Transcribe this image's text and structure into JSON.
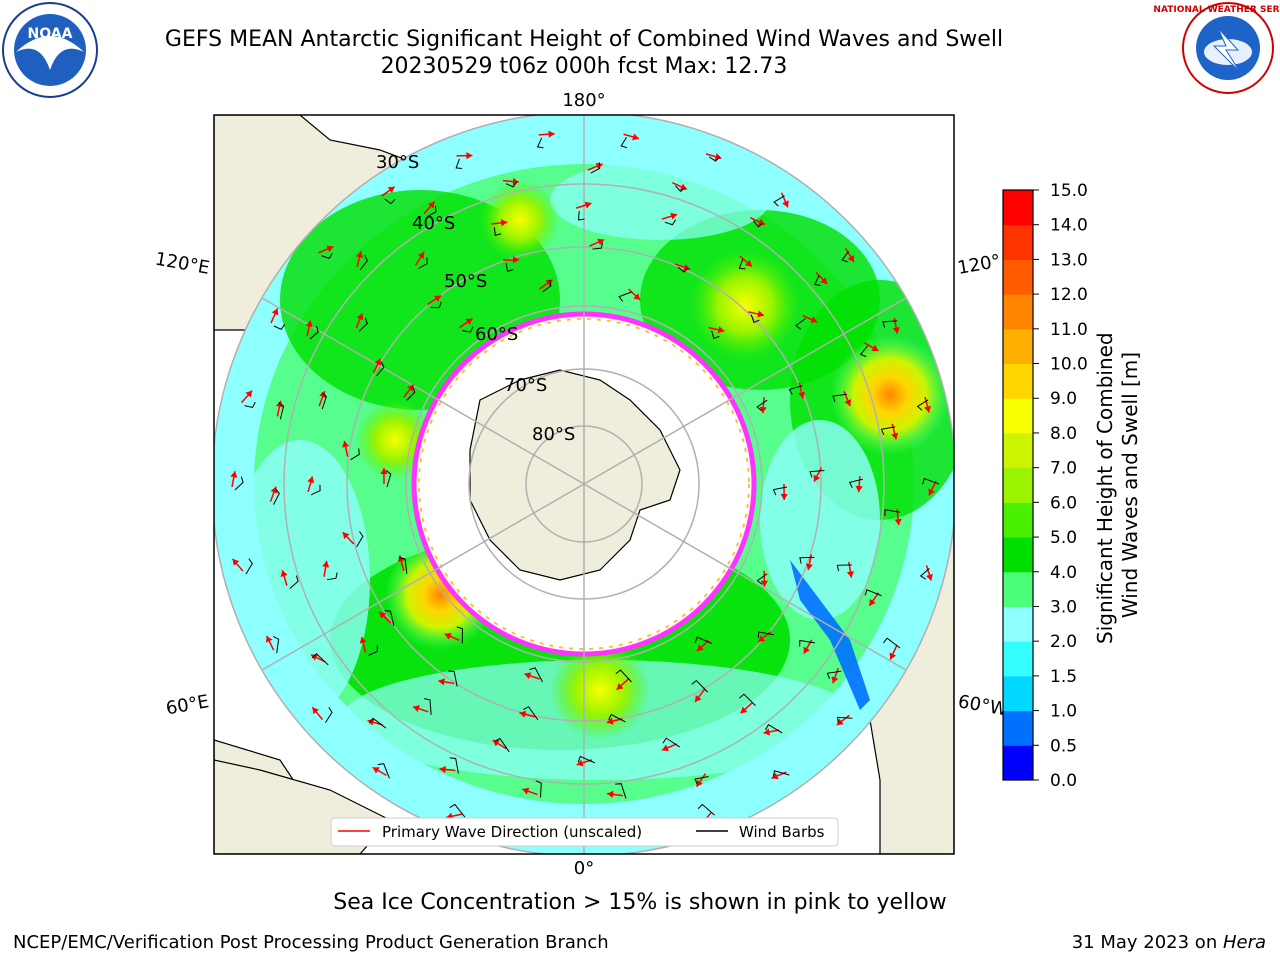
{
  "title": {
    "line1": "GEFS MEAN Antarctic Significant Height of Combined Wind Waves and Swell",
    "line2": "20230529 t06z 000h fcst   Max: 12.73"
  },
  "longitude_labels": {
    "top": "180°",
    "upper_left": "120°E",
    "upper_right": "120°",
    "lower_left": "60°E",
    "lower_right": "60°W",
    "bottom": "0°"
  },
  "latitude_labels": [
    "30°S",
    "40°S",
    "50°S",
    "60°S",
    "70°S",
    "80°S"
  ],
  "legend": {
    "wave_direction": "Primary Wave Direction (unscaled)",
    "wind_barbs": "Wind Barbs"
  },
  "colorbar": {
    "label_line1": "Significant Height of Combined",
    "label_line2": "Wind Waves and Swell [m]",
    "ticks": [
      "0.0",
      "0.5",
      "1.0",
      "1.5",
      "2.0",
      "3.0",
      "4.0",
      "5.0",
      "6.0",
      "7.0",
      "8.0",
      "9.0",
      "10.0",
      "11.0",
      "12.0",
      "13.0",
      "14.0",
      "15.0"
    ],
    "colors": [
      "#0000ff",
      "#0070ff",
      "#00d8ff",
      "#34fdfd",
      "#8effff",
      "#4dfe7a",
      "#00e000",
      "#49f000",
      "#9af400",
      "#ccf400",
      "#f7ff00",
      "#ffd600",
      "#ffb000",
      "#ff8500",
      "#ff5b00",
      "#ff3300",
      "#ff0000"
    ]
  },
  "note": "Sea Ice Concentration > 15% is shown in pink to yellow",
  "credit_left": "NCEP/EMC/Verification Post Processing Product Generation Branch",
  "credit_right_date": "31 May 2023 on ",
  "credit_right_host": "Hera",
  "logos": {
    "noaa_text": "NOAA",
    "nws_text": "NATIONAL WEATHER SERVICE"
  },
  "colors": {
    "land": "#efeddc",
    "ocean_low": "#8effff",
    "ice": "#ffffff",
    "ice_edge": "#ff33ff",
    "grid": "#b0b0b0",
    "wave_arrow": "#ff0000",
    "wind_barb": "#000000"
  }
}
